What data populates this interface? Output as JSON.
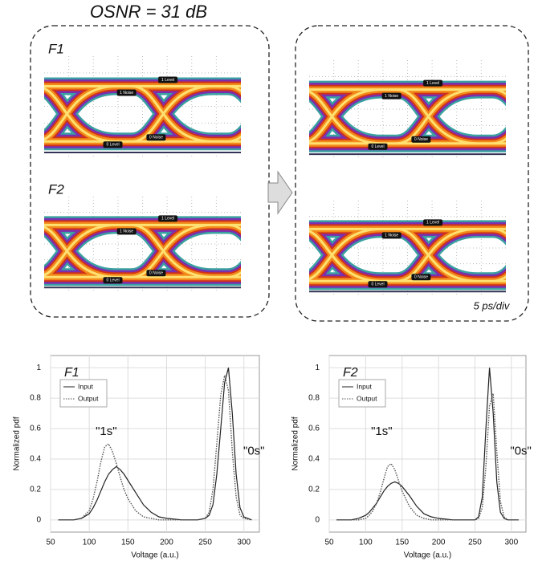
{
  "figure": {
    "title": "OSNR = 31 dB",
    "panel_labels": [
      "F1",
      "F2"
    ],
    "eye_labels": [
      "1 Level",
      "1 Noise",
      "0 Level",
      "0 Noise"
    ],
    "time_scale": "5 ps/div"
  },
  "chart_data": [
    {
      "type": "line",
      "xlabel": "Voltage (a.u.)",
      "ylabel": "Normalized pdf",
      "annotations": [
        "F1",
        "\"1s\"",
        "\"0s\""
      ],
      "x": [
        60,
        80,
        90,
        100,
        105,
        110,
        115,
        120,
        125,
        130,
        135,
        140,
        145,
        150,
        160,
        170,
        180,
        190,
        200,
        220,
        240,
        250,
        255,
        260,
        265,
        270,
        275,
        280,
        285,
        290,
        295,
        300,
        310
      ],
      "series": [
        {
          "name": "Input",
          "color": "#222222",
          "line_style": "solid",
          "values": [
            0,
            0,
            0.01,
            0.04,
            0.08,
            0.13,
            0.19,
            0.25,
            0.3,
            0.33,
            0.35,
            0.33,
            0.3,
            0.26,
            0.18,
            0.1,
            0.05,
            0.02,
            0.01,
            0,
            0,
            0.01,
            0.03,
            0.1,
            0.3,
            0.6,
            0.9,
            1.0,
            0.7,
            0.3,
            0.08,
            0.02,
            0
          ]
        },
        {
          "name": "Output",
          "color": "#555555",
          "line_style": "dotted",
          "values": [
            0,
            0,
            0.01,
            0.06,
            0.14,
            0.25,
            0.38,
            0.48,
            0.5,
            0.45,
            0.37,
            0.28,
            0.2,
            0.14,
            0.06,
            0.02,
            0.01,
            0,
            0,
            0,
            0,
            0.01,
            0.05,
            0.2,
            0.5,
            0.82,
            0.95,
            0.85,
            0.45,
            0.15,
            0.03,
            0.01,
            0
          ]
        }
      ],
      "xlim": [
        50,
        320
      ],
      "xticks": [
        50,
        100,
        150,
        200,
        250,
        300
      ],
      "ylim": [
        -0.08,
        1.08
      ],
      "yticks": [
        0,
        0.2,
        0.4,
        0.6,
        0.8,
        1
      ],
      "grid": true,
      "legend": "upper left"
    },
    {
      "type": "line",
      "xlabel": "Voltage (a.u.)",
      "ylabel": "Normalized pdf",
      "annotations": [
        "F2",
        "\"1s\"",
        "\"0s\""
      ],
      "x": [
        60,
        80,
        90,
        100,
        105,
        110,
        115,
        120,
        125,
        130,
        135,
        140,
        145,
        150,
        160,
        170,
        180,
        190,
        200,
        220,
        240,
        250,
        255,
        260,
        265,
        270,
        275,
        280,
        285,
        290,
        295,
        300,
        310
      ],
      "series": [
        {
          "name": "Input",
          "color": "#222222",
          "line_style": "solid",
          "values": [
            0,
            0,
            0.01,
            0.03,
            0.05,
            0.08,
            0.11,
            0.15,
            0.19,
            0.22,
            0.24,
            0.25,
            0.24,
            0.22,
            0.16,
            0.09,
            0.04,
            0.02,
            0.01,
            0,
            0,
            0,
            0.02,
            0.15,
            0.6,
            1.0,
            0.7,
            0.25,
            0.05,
            0.01,
            0,
            0,
            0
          ]
        },
        {
          "name": "Output",
          "color": "#555555",
          "line_style": "dotted",
          "values": [
            0,
            0,
            0,
            0.01,
            0.03,
            0.06,
            0.11,
            0.18,
            0.27,
            0.35,
            0.37,
            0.33,
            0.26,
            0.19,
            0.09,
            0.03,
            0.01,
            0,
            0,
            0,
            0,
            0,
            0.01,
            0.08,
            0.35,
            0.75,
            0.83,
            0.45,
            0.12,
            0.02,
            0,
            0,
            0
          ]
        }
      ],
      "xlim": [
        50,
        320
      ],
      "xticks": [
        50,
        100,
        150,
        200,
        250,
        300
      ],
      "ylim": [
        -0.08,
        1.08
      ],
      "yticks": [
        0,
        0.2,
        0.4,
        0.6,
        0.8,
        1
      ],
      "grid": true,
      "legend": "upper left"
    }
  ]
}
